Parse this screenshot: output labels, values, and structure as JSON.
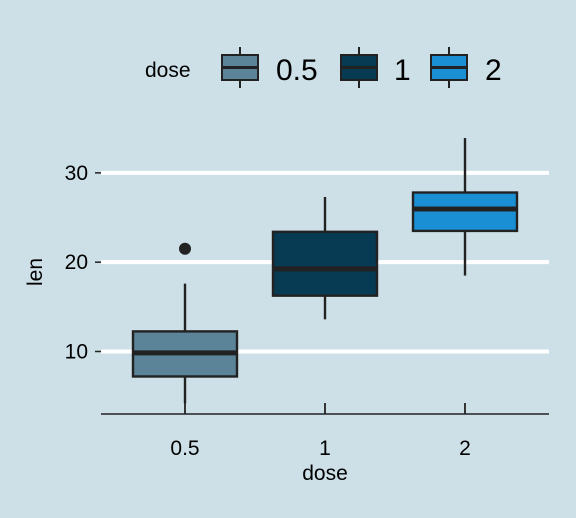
{
  "chart_data": {
    "type": "boxplot",
    "xlabel": "dose",
    "ylabel": "len",
    "categories": [
      "0.5",
      "1",
      "2"
    ],
    "yticks": [
      10,
      20,
      30
    ],
    "ylim": [
      3,
      34.8
    ],
    "grid": {
      "horizontal_major": true,
      "vertical": false
    },
    "legend": {
      "title": "dose",
      "placement": "top",
      "entries": [
        "0.5",
        "1",
        "2"
      ]
    },
    "colors": {
      "background": "#cde0e7",
      "grid": "#ffffff",
      "box_outline": "#222222",
      "series": [
        "#5b8499",
        "#073a53",
        "#1b8fd4"
      ]
    },
    "boxes": [
      {
        "category": "0.5",
        "min": 4.2,
        "q1": 7.2,
        "median": 9.85,
        "q3": 12.25,
        "max": 17.6,
        "outliers": [
          21.5
        ]
      },
      {
        "category": "1",
        "min": 13.6,
        "q1": 16.25,
        "median": 19.25,
        "q3": 23.4,
        "max": 27.3,
        "outliers": []
      },
      {
        "category": "2",
        "min": 18.5,
        "q1": 23.5,
        "median": 25.95,
        "q3": 27.8,
        "max": 33.9,
        "outliers": []
      }
    ]
  }
}
